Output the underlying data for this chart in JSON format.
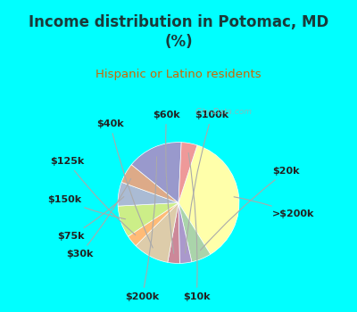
{
  "title": "Income distribution in Potomac, MD\n(%)",
  "subtitle": "Hispanic or Latino residents",
  "title_color": "#1a3a3a",
  "subtitle_color": "#cc6600",
  "background_top": "#00ffff",
  "background_chart_color": "#c8e8d8",
  "watermark": "City-Data.com",
  "labels": [
    ">$200k",
    "$20k",
    "$100k",
    "$60k",
    "$40k",
    "$125k",
    "$150k",
    "$75k",
    "$30k",
    "$200k",
    "$10k"
  ],
  "values": [
    34,
    5,
    3,
    3,
    9,
    3,
    8,
    6,
    5,
    14,
    4
  ],
  "colors": [
    "#ffffaa",
    "#aaddaa",
    "#cc99bb",
    "#9999cc",
    "#ffcc88",
    "#ccccaa",
    "#bbee88",
    "#aabbdd",
    "#ddaa88",
    "#9999cc",
    "#ee99aa"
  ],
  "start_angle": 72,
  "label_fontsize": 8
}
